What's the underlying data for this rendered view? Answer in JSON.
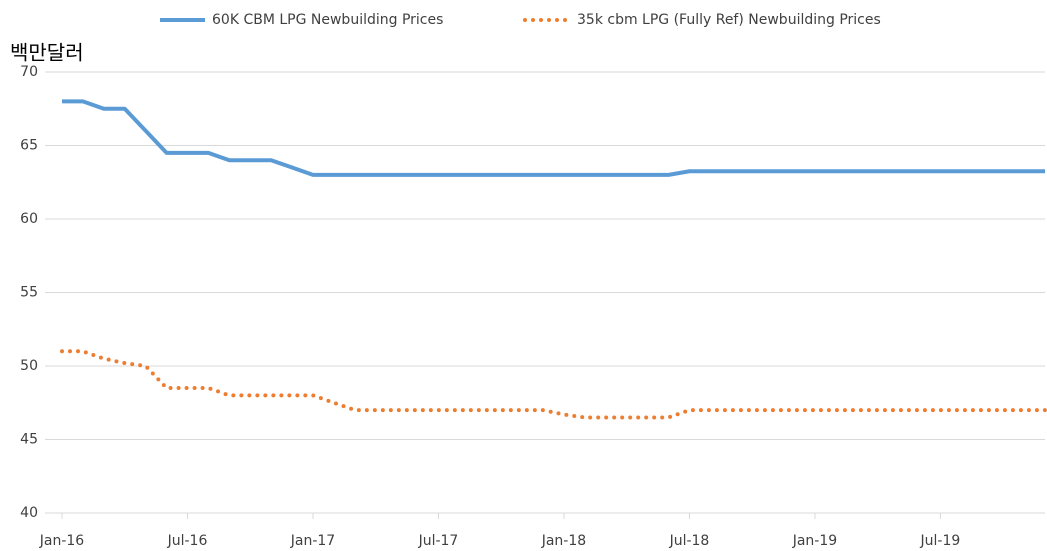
{
  "chart_data": {
    "type": "line",
    "y_label": "백만달러",
    "categories": [
      "Jan-16",
      null,
      null,
      null,
      null,
      null,
      "Jul-16",
      null,
      null,
      null,
      null,
      null,
      "Jan-17",
      null,
      null,
      null,
      null,
      null,
      "Jul-17",
      null,
      null,
      null,
      null,
      null,
      "Jan-18",
      null,
      null,
      null,
      null,
      null,
      "Jul-18",
      null,
      null,
      null,
      null,
      null,
      "Jan-19",
      null,
      null,
      null,
      null,
      null,
      "Jul-19",
      null,
      null,
      null,
      null,
      null
    ],
    "series": [
      {
        "name": "60K CBM LPG Newbuilding Prices",
        "color": "#5b9bd5",
        "style": "solid",
        "values": [
          68,
          68,
          67.5,
          67.5,
          66,
          64.5,
          64.5,
          64.5,
          64,
          64,
          64,
          63.5,
          63,
          63,
          63,
          63,
          63,
          63,
          63,
          63,
          63,
          63,
          63,
          63,
          63,
          63,
          63,
          63,
          63,
          63,
          63.25,
          63.25,
          63.25,
          63.25,
          63.25,
          63.25,
          63.25,
          63.25,
          63.25,
          63.25,
          63.25,
          63.25,
          63.25,
          63.25,
          63.25,
          63.25,
          63.25,
          63.25
        ]
      },
      {
        "name": "35k cbm LPG (Fully Ref) Newbuilding Prices",
        "color": "#ed7d31",
        "style": "dotted",
        "values": [
          51,
          51,
          50.5,
          50.2,
          50,
          48.5,
          48.5,
          48.5,
          48,
          48,
          48,
          48,
          48,
          47.5,
          47,
          47,
          47,
          47,
          47,
          47,
          47,
          47,
          47,
          47,
          46.7,
          46.5,
          46.5,
          46.5,
          46.5,
          46.5,
          47,
          47,
          47,
          47,
          47,
          47,
          47,
          47,
          47,
          47,
          47,
          47,
          47,
          47,
          47,
          47,
          47,
          47
        ]
      }
    ],
    "ylim": [
      40,
      70
    ],
    "yticks": [
      40,
      45,
      50,
      55,
      60,
      65,
      70
    ],
    "grid": true,
    "legend": "top"
  }
}
